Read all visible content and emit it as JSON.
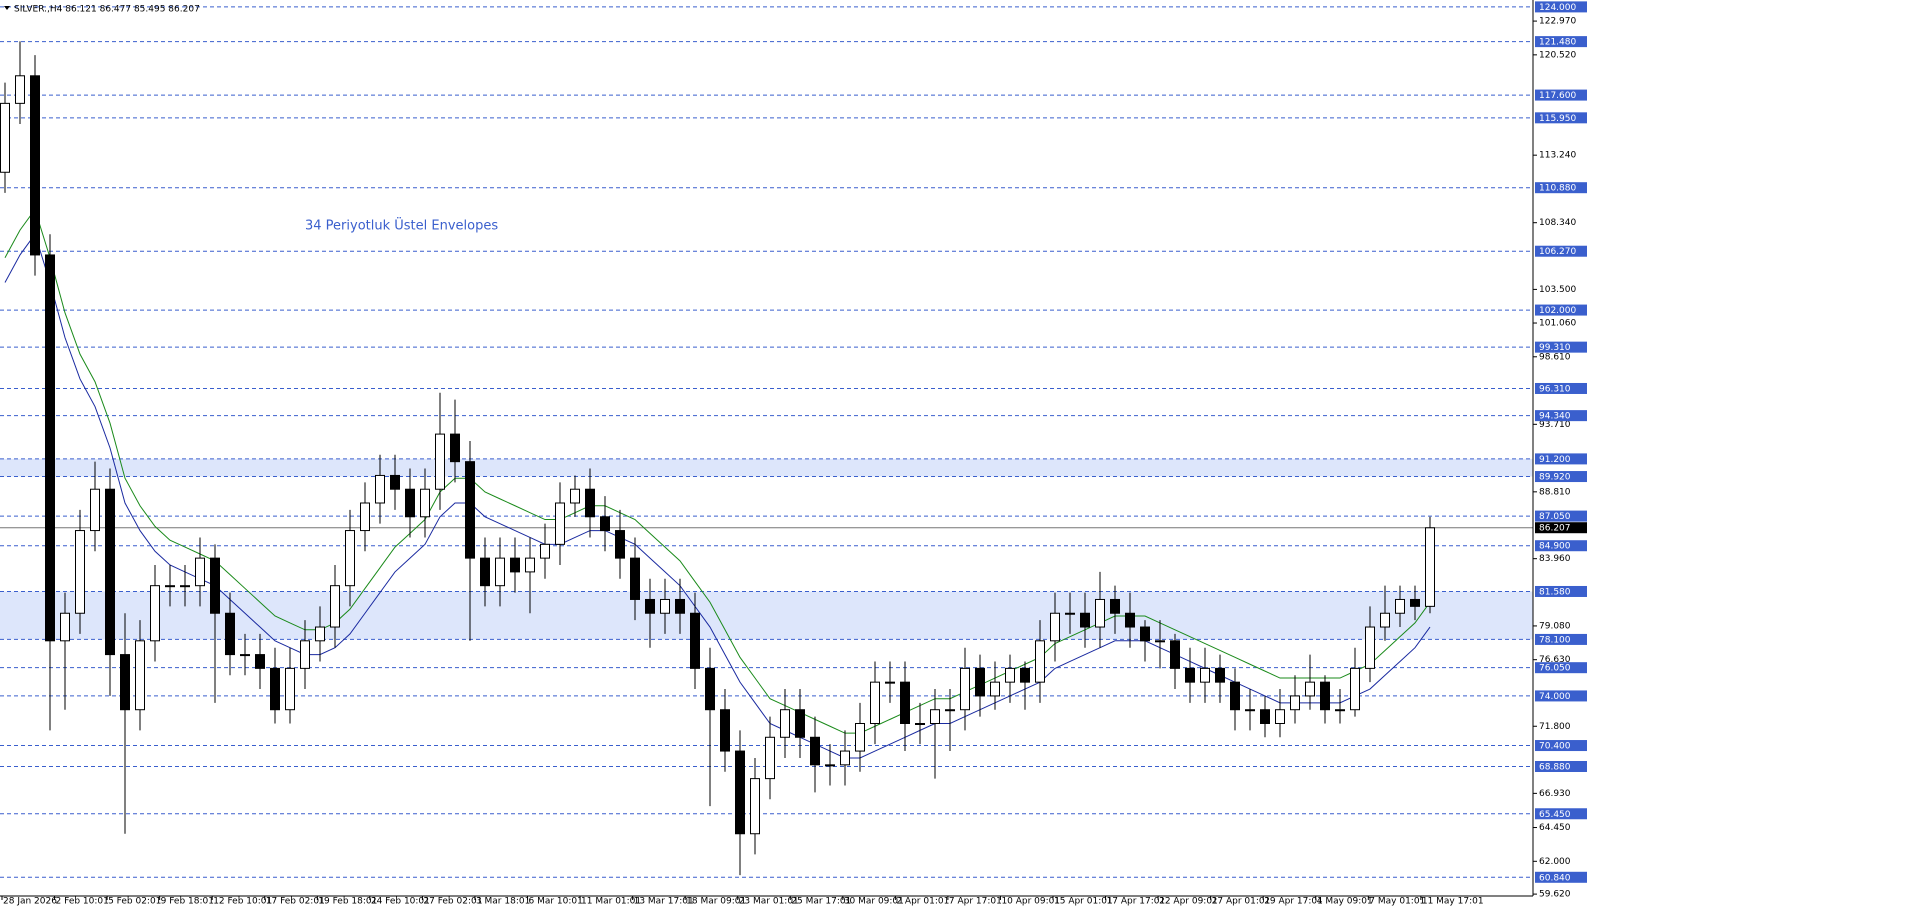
{
  "chart_data": {
    "type": "candlestick",
    "title": "SILVER.,H4  86.121 86.477 85.495 86.207",
    "annotation": "34 Periyotluk Üstel Envelopes",
    "x_labels": [
      "28 Jan 2026",
      "2 Feb 10:01",
      "5 Feb 02:01",
      "9 Feb 18:01",
      "12 Feb 10:01",
      "17 Feb 02:01",
      "19 Feb 18:01",
      "24 Feb 10:01",
      "27 Feb 02:01",
      "3 Mar 18:01",
      "6 Mar 10:01",
      "11 Mar 01:01",
      "13 Mar 17:01",
      "18 Mar 09:01",
      "23 Mar 01:01",
      "25 Mar 17:01",
      "30 Mar 09:01",
      "2 Apr 01:01",
      "7 Apr 17:01",
      "10 Apr 09:01",
      "15 Apr 01:01",
      "17 Apr 17:01",
      "22 Apr 09:01",
      "27 Apr 01:01",
      "29 Apr 17:01",
      "4 May 09:01",
      "7 May 01:01",
      "11 May 17:01"
    ],
    "ylim": [
      59.7,
      124.5
    ],
    "yticks": [
      {
        "value": 59.62,
        "label": "59.620"
      },
      {
        "value": 62.0,
        "label": "62.000"
      },
      {
        "value": 64.45,
        "label": "64.450"
      },
      {
        "value": 66.93,
        "label": "66.930"
      },
      {
        "value": 71.8,
        "label": "71.800"
      },
      {
        "value": 76.63,
        "label": "76.630"
      },
      {
        "value": 79.08,
        "label": "79.080"
      },
      {
        "value": 83.96,
        "label": "83.960"
      },
      {
        "value": 88.81,
        "label": "88.810"
      },
      {
        "value": 93.71,
        "label": "93.710"
      },
      {
        "value": 98.61,
        "label": "98.610"
      },
      {
        "value": 101.06,
        "label": "101.060"
      },
      {
        "value": 103.5,
        "label": "103.500"
      },
      {
        "value": 108.34,
        "label": "108.340"
      },
      {
        "value": 113.24,
        "label": "113.240"
      },
      {
        "value": 120.52,
        "label": "120.520"
      },
      {
        "value": 122.97,
        "label": "122.970"
      }
    ],
    "candles": {
      "open": [
        112,
        117,
        119,
        106,
        78,
        80,
        86,
        89,
        77,
        73,
        78,
        82,
        82,
        82,
        84,
        80,
        77,
        77,
        76,
        73,
        76,
        78,
        79,
        82,
        86,
        88,
        90,
        89,
        87,
        89,
        93,
        91,
        84,
        82,
        84,
        83,
        84,
        85,
        88,
        89,
        87,
        86,
        84,
        81,
        80,
        81,
        80,
        76,
        73,
        70,
        64,
        68,
        71,
        73,
        71,
        69,
        69,
        70,
        72,
        75,
        75,
        72,
        72,
        73,
        73,
        76,
        74,
        75,
        76,
        75,
        78,
        80,
        80,
        79,
        81,
        80,
        79,
        78,
        78,
        76,
        75,
        76,
        75,
        73,
        73,
        72,
        73,
        74,
        75,
        73,
        73,
        76,
        79,
        80,
        81,
        80.5
      ],
      "high": [
        118.5,
        121.5,
        120.5,
        107.5,
        81.5,
        87.5,
        91,
        90.5,
        80,
        79.5,
        83.5,
        83.5,
        83.5,
        85.5,
        85,
        81.5,
        78.5,
        78.5,
        77.5,
        77.5,
        79.5,
        80.5,
        83.5,
        87.5,
        89.5,
        91.5,
        91.5,
        90.5,
        90.5,
        96,
        95.5,
        92.5,
        85.5,
        85.5,
        85.5,
        85.5,
        86.5,
        89.5,
        90,
        90.5,
        88.5,
        87.5,
        85.5,
        82.5,
        82.5,
        82.5,
        81.5,
        77.5,
        74.5,
        71.5,
        69.5,
        72.5,
        74.5,
        74.5,
        72.5,
        70.5,
        71.5,
        73.5,
        76.5,
        76.5,
        76.5,
        73.5,
        74.5,
        74.5,
        77.5,
        77,
        76.5,
        77,
        76.5,
        79.5,
        81.5,
        81.5,
        81.5,
        83,
        82,
        81.5,
        79.5,
        79.5,
        78.5,
        77.5,
        77.5,
        77,
        76,
        74.5,
        74,
        74.5,
        75.5,
        77,
        75.5,
        74.5,
        77.5,
        80.5,
        82,
        82,
        82,
        87
      ],
      "low": [
        110.5,
        115.5,
        104.5,
        71.5,
        73,
        78.5,
        84.5,
        74,
        64,
        71.5,
        76.5,
        80.5,
        80.5,
        80.5,
        73.5,
        75.5,
        75.5,
        74.5,
        72,
        72,
        74.5,
        76.5,
        77.5,
        80.5,
        84.5,
        86.5,
        87.5,
        85.5,
        85.5,
        87.5,
        89.5,
        78,
        80.5,
        80.5,
        81.5,
        80,
        82.5,
        83.5,
        87,
        85.5,
        84.5,
        82.5,
        79.5,
        77.5,
        78.5,
        78.5,
        74.5,
        66,
        68.5,
        61,
        62.5,
        66.5,
        69.5,
        69.5,
        67,
        67.5,
        67.5,
        68.5,
        70.5,
        73.5,
        70,
        70.5,
        68,
        70,
        71.5,
        72.5,
        73,
        73.5,
        73,
        73.5,
        76.5,
        78.5,
        77.5,
        77.5,
        78.5,
        77.5,
        76.5,
        76,
        74.5,
        73.5,
        73.5,
        73.5,
        71.5,
        71.5,
        71,
        71,
        72,
        73,
        72,
        72,
        72.5,
        75,
        78,
        79,
        79.5,
        80
      ],
      "close": [
        117,
        119,
        106,
        78,
        80,
        86,
        89,
        77,
        73,
        78,
        82,
        82,
        82,
        84,
        80,
        77,
        77,
        76,
        73,
        76,
        78,
        79,
        82,
        86,
        88,
        90,
        89,
        87,
        89,
        93,
        91,
        84,
        82,
        84,
        83,
        84,
        85,
        88,
        89,
        87,
        86,
        84,
        81,
        80,
        81,
        80,
        76,
        73,
        70,
        64,
        68,
        71,
        73,
        71,
        69,
        69,
        70,
        72,
        75,
        75,
        72,
        72,
        73,
        73,
        76,
        74,
        75,
        76,
        75,
        78,
        80,
        80,
        79,
        81,
        80,
        79,
        78,
        78,
        76,
        75,
        76,
        75,
        73,
        73,
        72,
        73,
        74,
        75,
        73,
        73,
        76,
        79,
        80,
        81,
        80.5,
        86.2
      ]
    },
    "series": [
      {
        "color": "#1a8a1a",
        "values": [
          105.8,
          107.8,
          109.3,
          105.8,
          101.8,
          98.8,
          96.8,
          93.8,
          89.8,
          87.8,
          86.3,
          85.3,
          84.8,
          84.3,
          83.8,
          82.8,
          81.8,
          80.8,
          79.8,
          79.3,
          78.8,
          78.8,
          79.3,
          80.3,
          81.8,
          83.3,
          84.8,
          85.8,
          86.8,
          88.8,
          89.8,
          89.8,
          88.8,
          88.3,
          87.8,
          87.3,
          86.8,
          86.8,
          87.3,
          87.8,
          87.8,
          87.3,
          86.8,
          85.8,
          84.8,
          83.8,
          82.3,
          80.8,
          78.8,
          76.8,
          75.3,
          73.8,
          73.3,
          72.8,
          72.3,
          71.8,
          71.3,
          71.3,
          71.8,
          72.3,
          72.8,
          73.3,
          73.8,
          73.8,
          74.3,
          74.8,
          75.3,
          75.8,
          76.3,
          76.8,
          77.8,
          78.3,
          78.8,
          79.3,
          79.8,
          79.8,
          79.8,
          79.3,
          78.8,
          78.3,
          77.8,
          77.3,
          76.8,
          76.3,
          75.8,
          75.3,
          75.3,
          75.3,
          75.3,
          75.3,
          75.8,
          76.3,
          77.3,
          78.3,
          79.3,
          80.8
        ]
      },
      {
        "color": "#1a2aa0",
        "values": [
          104,
          106,
          107.5,
          104,
          100,
          97,
          95,
          92,
          88,
          86,
          84.5,
          83.5,
          83,
          82.5,
          82,
          81,
          80,
          79,
          78,
          77.5,
          77,
          77,
          77.5,
          78.5,
          80,
          81.5,
          83,
          84,
          85,
          87,
          88,
          88,
          87,
          86.5,
          86,
          85.5,
          85,
          85,
          85.5,
          86,
          86,
          85.5,
          85,
          84,
          83,
          82,
          80.5,
          79,
          77,
          75,
          73.5,
          72,
          71.5,
          71,
          70.5,
          70,
          69.5,
          69.5,
          70,
          70.5,
          71,
          71.5,
          72,
          72,
          72.5,
          73,
          73.5,
          74,
          74.5,
          75,
          76,
          76.5,
          77,
          77.5,
          78,
          78,
          78,
          77.5,
          77,
          76.5,
          76,
          75.5,
          75,
          74.5,
          74,
          73.5,
          73.5,
          73.5,
          73.5,
          73.5,
          74,
          74.5,
          75.5,
          76.5,
          77.5,
          79
        ]
      }
    ],
    "levels": [
      {
        "value": 124.0,
        "label": "124.000"
      },
      {
        "value": 121.48,
        "label": "121.480"
      },
      {
        "value": 117.6,
        "label": "117.600"
      },
      {
        "value": 115.95,
        "label": "115.950"
      },
      {
        "value": 110.88,
        "label": "110.880"
      },
      {
        "value": 106.27,
        "label": "106.270"
      },
      {
        "value": 102.0,
        "label": "102.000"
      },
      {
        "value": 99.31,
        "label": "99.310"
      },
      {
        "value": 96.31,
        "label": "96.310"
      },
      {
        "value": 94.34,
        "label": "94.340"
      },
      {
        "value": 91.2,
        "label": "91.200"
      },
      {
        "value": 89.92,
        "label": "89.920"
      },
      {
        "value": 87.05,
        "label": "87.050"
      },
      {
        "value": 84.9,
        "label": "84.900"
      },
      {
        "value": 81.58,
        "label": "81.580"
      },
      {
        "value": 78.1,
        "label": "78.100"
      },
      {
        "value": 76.05,
        "label": "76.050"
      },
      {
        "value": 74.0,
        "label": "74.000"
      },
      {
        "value": 70.4,
        "label": "70.400"
      },
      {
        "value": 68.88,
        "label": "68.880"
      },
      {
        "value": 65.45,
        "label": "65.450"
      },
      {
        "value": 60.84,
        "label": "60.840"
      }
    ],
    "zones": [
      [
        89.92,
        91.2
      ],
      [
        78.1,
        81.58
      ]
    ],
    "current_price": {
      "value": 86.207,
      "label": "86.207"
    },
    "level_color": "#3a5fcd",
    "zone_color": "#dde6fb"
  }
}
